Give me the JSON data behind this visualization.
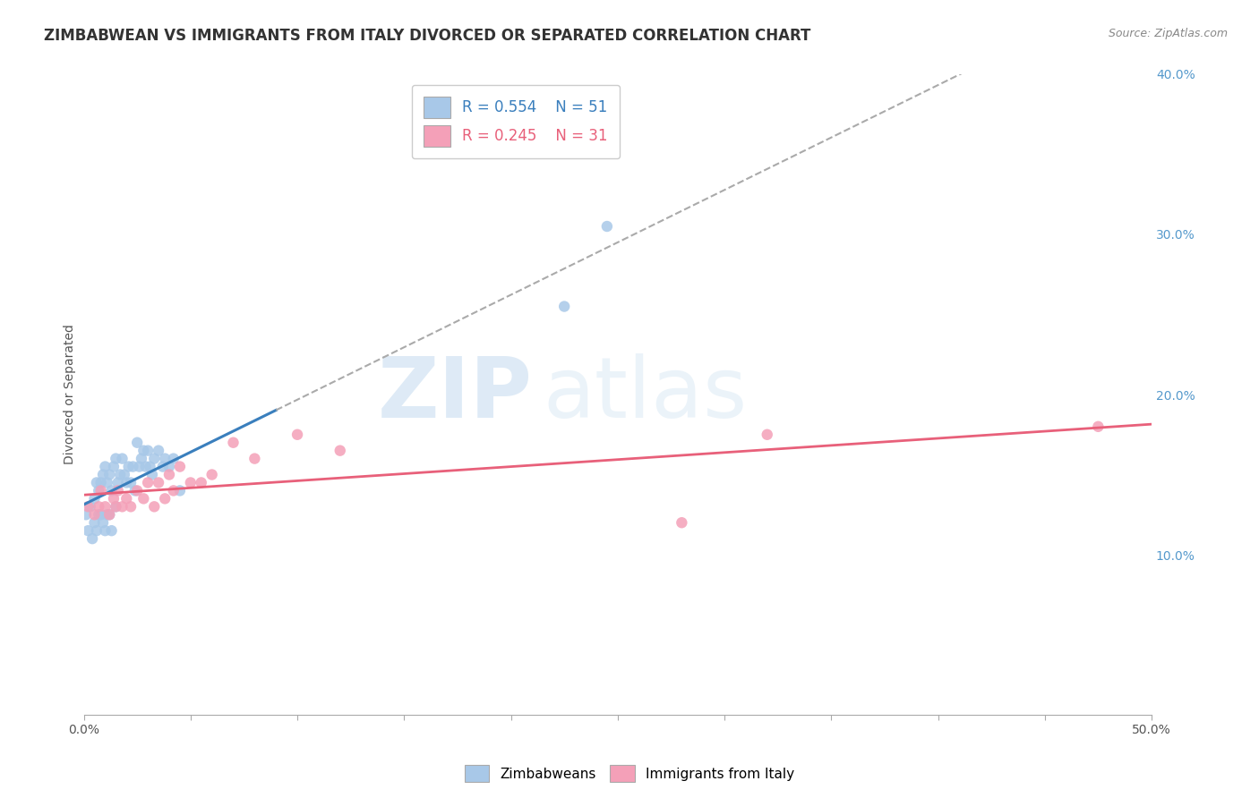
{
  "title": "ZIMBABWEAN VS IMMIGRANTS FROM ITALY DIVORCED OR SEPARATED CORRELATION CHART",
  "source_text": "Source: ZipAtlas.com",
  "ylabel": "Divorced or Separated",
  "xlim": [
    0.0,
    0.5
  ],
  "ylim": [
    0.0,
    0.4
  ],
  "xticks": [
    0.0,
    0.05,
    0.1,
    0.15,
    0.2,
    0.25,
    0.3,
    0.35,
    0.4,
    0.45,
    0.5
  ],
  "yticks_right": [
    0.1,
    0.2,
    0.3,
    0.4
  ],
  "ytick_right_labels": [
    "10.0%",
    "20.0%",
    "30.0%",
    "40.0%"
  ],
  "r_zimbabwe": 0.554,
  "n_zimbabwe": 51,
  "r_italy": 0.245,
  "n_italy": 31,
  "zimbabwe_color": "#a8c8e8",
  "italy_color": "#f4a0b8",
  "zimbabwe_line_color": "#3a7fbd",
  "italy_line_color": "#e8607a",
  "legend_label_zimbabwe": "Zimbabweans",
  "legend_label_italy": "Immigrants from Italy",
  "watermark_zip": "ZIP",
  "watermark_atlas": "atlas",
  "background_color": "#ffffff",
  "grid_color": "#cccccc",
  "title_fontsize": 12,
  "axis_label_fontsize": 10,
  "tick_fontsize": 10,
  "zimbabwe_x": [
    0.001,
    0.002,
    0.003,
    0.004,
    0.005,
    0.005,
    0.006,
    0.006,
    0.007,
    0.007,
    0.008,
    0.008,
    0.009,
    0.009,
    0.01,
    0.01,
    0.011,
    0.011,
    0.012,
    0.012,
    0.013,
    0.013,
    0.014,
    0.015,
    0.015,
    0.016,
    0.017,
    0.018,
    0.019,
    0.02,
    0.021,
    0.022,
    0.023,
    0.024,
    0.025,
    0.026,
    0.027,
    0.028,
    0.029,
    0.03,
    0.031,
    0.032,
    0.033,
    0.035,
    0.037,
    0.038,
    0.04,
    0.042,
    0.045,
    0.225,
    0.245
  ],
  "zimbabwe_y": [
    0.125,
    0.115,
    0.13,
    0.11,
    0.135,
    0.12,
    0.145,
    0.115,
    0.14,
    0.125,
    0.145,
    0.125,
    0.15,
    0.12,
    0.155,
    0.115,
    0.145,
    0.125,
    0.15,
    0.125,
    0.14,
    0.115,
    0.155,
    0.16,
    0.13,
    0.145,
    0.15,
    0.16,
    0.15,
    0.145,
    0.155,
    0.145,
    0.155,
    0.14,
    0.17,
    0.155,
    0.16,
    0.165,
    0.155,
    0.165,
    0.155,
    0.15,
    0.16,
    0.165,
    0.155,
    0.16,
    0.155,
    0.16,
    0.14,
    0.255,
    0.305
  ],
  "italy_x": [
    0.002,
    0.005,
    0.007,
    0.008,
    0.01,
    0.012,
    0.014,
    0.015,
    0.016,
    0.018,
    0.02,
    0.022,
    0.025,
    0.028,
    0.03,
    0.033,
    0.035,
    0.038,
    0.04,
    0.042,
    0.045,
    0.05,
    0.055,
    0.06,
    0.07,
    0.08,
    0.1,
    0.12,
    0.28,
    0.32,
    0.475
  ],
  "italy_y": [
    0.13,
    0.125,
    0.13,
    0.14,
    0.13,
    0.125,
    0.135,
    0.13,
    0.14,
    0.13,
    0.135,
    0.13,
    0.14,
    0.135,
    0.145,
    0.13,
    0.145,
    0.135,
    0.15,
    0.14,
    0.155,
    0.145,
    0.145,
    0.15,
    0.17,
    0.16,
    0.175,
    0.165,
    0.12,
    0.175,
    0.18
  ]
}
